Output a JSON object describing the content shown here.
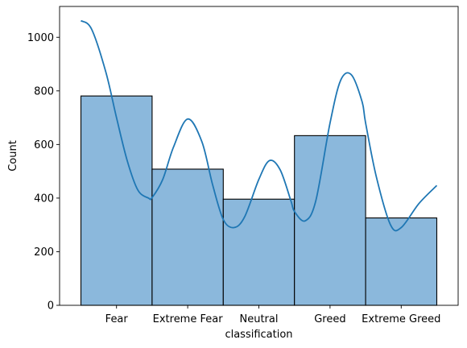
{
  "chart_data": {
    "type": "bar",
    "subtype": "histogram-with-kde",
    "categories": [
      "Fear",
      "Extreme Fear",
      "Neutral",
      "Greed",
      "Extreme Greed"
    ],
    "values": [
      781,
      508,
      396,
      633,
      326
    ],
    "kde": {
      "x": [
        -0.5,
        -0.35,
        -0.15,
        0.0,
        0.15,
        0.3,
        0.45,
        0.5,
        0.65,
        0.8,
        1.0,
        1.2,
        1.35,
        1.5,
        1.65,
        1.8,
        2.0,
        2.15,
        2.3,
        2.45,
        2.5,
        2.65,
        2.8,
        3.0,
        3.15,
        3.3,
        3.45,
        3.5,
        3.65,
        3.85,
        4.0,
        4.25,
        4.5
      ],
      "y": [
        1062,
        1030,
        870,
        700,
        540,
        430,
        400,
        402,
        470,
        590,
        695,
        610,
        450,
        320,
        290,
        330,
        470,
        540,
        505,
        390,
        350,
        315,
        390,
        680,
        840,
        860,
        760,
        680,
        480,
        300,
        290,
        380,
        447
      ]
    },
    "xlabel": "classification",
    "ylabel": "Count",
    "yticks": [
      0,
      200,
      400,
      600,
      800,
      1000
    ],
    "ylim": [
      0,
      1115
    ],
    "xlim": [
      -0.8,
      4.8
    ],
    "grid": false,
    "colors": {
      "bar_fill": "#8bb8dc",
      "bar_edge": "#000000",
      "kde_line": "#1f77b4"
    }
  }
}
